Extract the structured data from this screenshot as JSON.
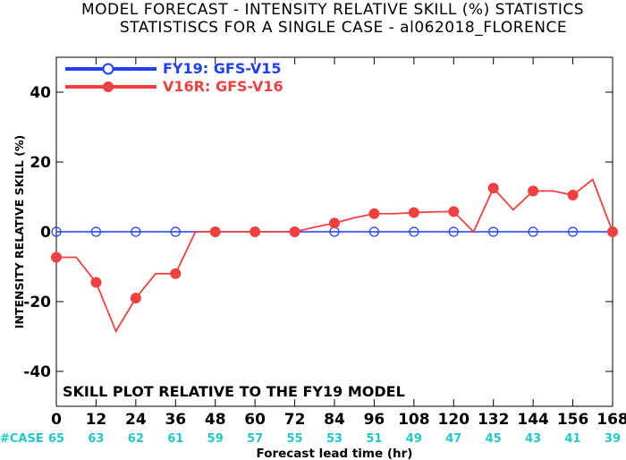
{
  "chart_data": {
    "type": "line",
    "title": "MODEL FORECAST - INTENSITY RELATIVE SKILL (%) STATISTICS",
    "subtitle": "STATISTISCS FOR A SINGLE CASE - al062018_FLORENCE",
    "xlabel": "Forecast lead time (hr)",
    "ylabel": "INTENSITY RELATIVE SKILL (%)",
    "xlim": [
      0,
      168
    ],
    "ylim": [
      -50,
      50
    ],
    "x_ticks": [
      0,
      12,
      24,
      36,
      48,
      60,
      72,
      84,
      96,
      108,
      120,
      132,
      144,
      156,
      168
    ],
    "y_ticks": [
      -40,
      -20,
      0,
      20,
      40
    ],
    "grid": false,
    "legend_position": "top-left",
    "annotation": "SKILL PLOT RELATIVE TO THE FY19 MODEL",
    "case_label": "#CASE",
    "case_counts": [
      65,
      63,
      62,
      61,
      59,
      57,
      55,
      53,
      51,
      49,
      47,
      45,
      43,
      41,
      39
    ],
    "series": [
      {
        "name": "FY19: GFS-V15",
        "color": "#1f3fff",
        "marker": "open-circle",
        "x": [
          0,
          12,
          24,
          36,
          48,
          60,
          72,
          84,
          96,
          108,
          120,
          132,
          144,
          156,
          168
        ],
        "y": [
          0,
          0,
          0,
          0,
          0,
          0,
          0,
          0,
          0,
          0,
          0,
          0,
          0,
          0,
          0
        ]
      },
      {
        "name": "V16R: GFS-V16",
        "color": "#f04040",
        "marker": "filled-circle",
        "x": [
          0,
          6,
          12,
          18,
          24,
          30,
          36,
          42,
          48,
          54,
          60,
          66,
          72,
          78,
          84,
          90,
          96,
          102,
          108,
          114,
          120,
          126,
          132,
          138,
          144,
          150,
          156,
          162,
          168
        ],
        "y": [
          -7.3,
          -7.3,
          -14.5,
          -28.5,
          -19,
          -12,
          -12,
          0,
          0,
          0,
          0,
          0,
          0,
          1.3,
          2.5,
          4,
          5.2,
          5.2,
          5.5,
          5.7,
          5.8,
          0,
          12.5,
          6.3,
          11.7,
          11.7,
          10.5,
          15,
          0
        ],
        "marker_x": [
          0,
          12,
          24,
          36,
          48,
          60,
          72,
          84,
          96,
          108,
          120,
          132,
          144,
          156,
          168
        ]
      }
    ]
  }
}
